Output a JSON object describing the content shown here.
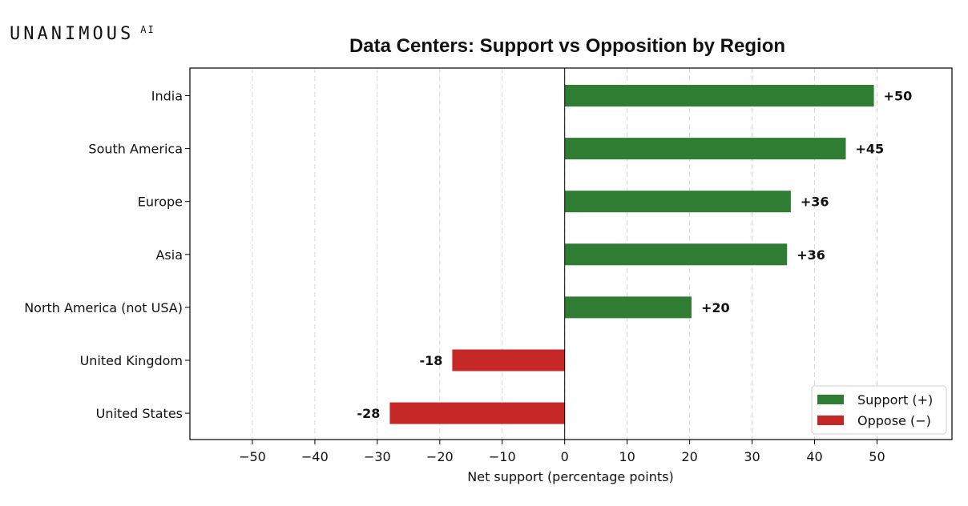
{
  "logo": {
    "text": "UNANIMOUS",
    "suffix": "AI"
  },
  "chart_data": {
    "type": "bar",
    "orientation": "horizontal",
    "title": "Data Centers: Support vs Opposition by Region",
    "xlabel": "Net support (percentage points)",
    "ylabel": "",
    "xlim": [
      -60,
      62
    ],
    "xticks": [
      -50,
      -40,
      -30,
      -20,
      -10,
      0,
      10,
      20,
      30,
      40,
      50
    ],
    "xtick_labels": [
      "−50",
      "−40",
      "−30",
      "−20",
      "−10",
      "0",
      "10",
      "20",
      "30",
      "40",
      "50"
    ],
    "grid": "vertical dashed",
    "legend_position": "bottom-right",
    "categories": [
      "India",
      "South America",
      "Europe",
      "Asia",
      "North America (not USA)",
      "United Kingdom",
      "United States"
    ],
    "values": [
      49.5,
      45,
      36.2,
      35.6,
      20.3,
      -18,
      -28
    ],
    "data_labels": [
      "+50",
      "+45",
      "+36",
      "+36",
      "+20",
      "-18",
      "-28"
    ],
    "legend": [
      {
        "name": "Support (+)",
        "color": "#2e7d32"
      },
      {
        "name": "Oppose (−)",
        "color": "#c62828"
      }
    ],
    "colors": {
      "support": "#2e7d32",
      "oppose": "#c62828"
    }
  }
}
